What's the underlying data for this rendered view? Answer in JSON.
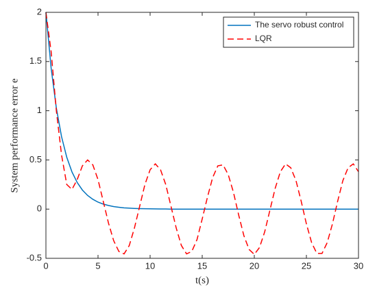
{
  "chart_data": {
    "type": "line",
    "xlabel": "t(s)",
    "ylabel": "System performance error e",
    "x": [
      0,
      0.5,
      1,
      1.5,
      2,
      2.5,
      3,
      3.5,
      4,
      4.5,
      5,
      5.5,
      6,
      6.5,
      7,
      7.5,
      8,
      8.5,
      9,
      9.5,
      10,
      10.5,
      11,
      11.5,
      12,
      12.5,
      13,
      13.5,
      14,
      14.5,
      15,
      15.5,
      16,
      16.5,
      17,
      17.5,
      18,
      18.5,
      19,
      19.5,
      20,
      20.5,
      21,
      21.5,
      22,
      22.5,
      23,
      23.5,
      24,
      24.5,
      25,
      25.5,
      26,
      26.5,
      27,
      27.5,
      28,
      28.5,
      29,
      29.5,
      30
    ],
    "series": [
      {
        "name": "The servo robust control",
        "color": "#0072bd",
        "dash": false,
        "values": [
          2,
          1.433,
          1.027,
          0.736,
          0.527,
          0.378,
          0.271,
          0.194,
          0.139,
          0.1,
          0.071,
          0.051,
          0.037,
          0.026,
          0.019,
          0.013,
          0.01,
          0.007,
          0.005,
          0.004,
          0.003,
          0.002,
          0.001,
          0.001,
          0,
          0,
          0,
          0,
          0,
          0,
          0,
          0,
          0,
          0,
          0,
          0,
          0,
          0,
          0,
          0,
          0,
          0,
          0,
          0,
          0,
          0,
          0,
          0,
          0,
          0,
          0,
          0,
          0,
          0,
          0,
          0,
          0,
          0,
          0,
          0,
          0
        ]
      },
      {
        "name": "LQR",
        "color": "#ff0000",
        "dash": true,
        "values": [
          2,
          1.6,
          1.0,
          0.55,
          0.25,
          0.2,
          0.3,
          0.44,
          0.5,
          0.45,
          0.3,
          0.08,
          -0.14,
          -0.32,
          -0.43,
          -0.455,
          -0.37,
          -0.19,
          0.03,
          0.25,
          0.4,
          0.46,
          0.4,
          0.25,
          0.03,
          -0.19,
          -0.37,
          -0.455,
          -0.43,
          -0.31,
          -0.1,
          0.12,
          0.32,
          0.44,
          0.45,
          0.35,
          0.17,
          -0.06,
          -0.27,
          -0.41,
          -0.46,
          -0.39,
          -0.23,
          -0.01,
          0.21,
          0.38,
          0.46,
          0.42,
          0.29,
          0.08,
          -0.15,
          -0.34,
          -0.45,
          -0.45,
          -0.34,
          -0.15,
          0.08,
          0.29,
          0.42,
          0.46,
          0.38
        ]
      }
    ],
    "xlim": [
      0,
      30
    ],
    "xticks": [
      0,
      5,
      10,
      15,
      20,
      25,
      30
    ],
    "ylim": [
      -0.5,
      2
    ],
    "yticks": [
      -0.5,
      0,
      0.5,
      1,
      1.5,
      2
    ],
    "legend": "northeast"
  }
}
